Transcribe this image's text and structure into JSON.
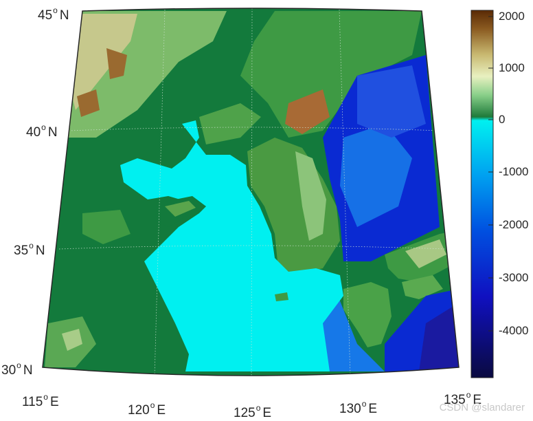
{
  "map": {
    "lat_labels": [
      {
        "value": "45",
        "hemi": "N"
      },
      {
        "value": "40",
        "hemi": "N"
      },
      {
        "value": "35",
        "hemi": "N"
      },
      {
        "value": "30",
        "hemi": "N"
      }
    ],
    "lon_labels": [
      {
        "value": "115",
        "hemi": "E"
      },
      {
        "value": "120",
        "hemi": "E"
      },
      {
        "value": "125",
        "hemi": "E"
      },
      {
        "value": "130",
        "hemi": "E"
      },
      {
        "value": "135",
        "hemi": "E"
      }
    ],
    "colors": {
      "ocean_shallow": "#00f0f0",
      "ocean_mid": "#0a6ee0",
      "ocean_deep": "#1818c8",
      "land_low": "#0f7a3a",
      "land_mid": "#3a9a3a",
      "land_high": "#b8c88a",
      "mountain": "#8a5a2a",
      "border": "#262626"
    }
  },
  "colorbar": {
    "ticks": [
      "2000",
      "1000",
      "0",
      "-1000",
      "-2000",
      "-3000",
      "-4000"
    ],
    "range": [
      -4900,
      2100
    ]
  },
  "watermark": "CSDN @slandarer"
}
